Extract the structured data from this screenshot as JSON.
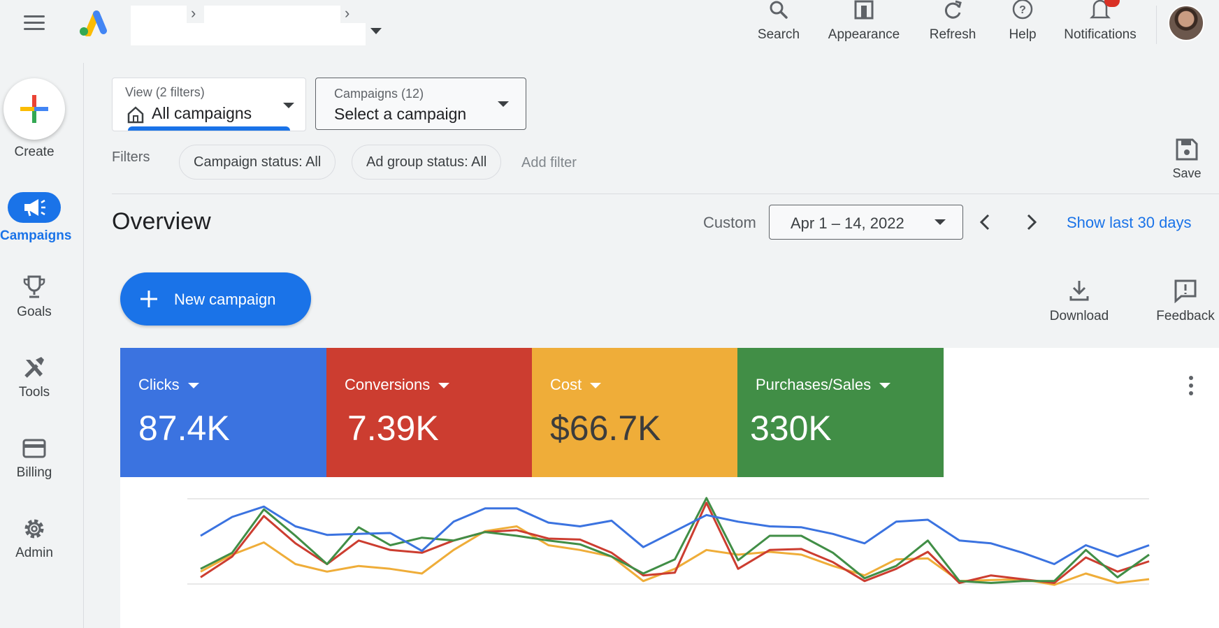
{
  "topbar": {
    "actions": [
      {
        "label": "Search",
        "icon": "search-icon"
      },
      {
        "label": "Appearance",
        "icon": "appearance-icon"
      },
      {
        "label": "Refresh",
        "icon": "refresh-icon"
      },
      {
        "label": "Help",
        "icon": "help-icon"
      },
      {
        "label": "Notifications",
        "icon": "bell-icon"
      }
    ]
  },
  "rail": {
    "create_label": "Create",
    "items": [
      {
        "label": "Campaigns",
        "icon": "megaphone-icon",
        "active": true
      },
      {
        "label": "Goals",
        "icon": "trophy-icon"
      },
      {
        "label": "Tools",
        "icon": "tools-icon"
      },
      {
        "label": "Billing",
        "icon": "credit-card-icon"
      },
      {
        "label": "Admin",
        "icon": "gear-icon"
      }
    ]
  },
  "view": {
    "small": "View (2 filters)",
    "main": "All campaigns"
  },
  "campaigns_select": {
    "small": "Campaigns (12)",
    "main": "Select a campaign"
  },
  "filters": {
    "label": "Filters",
    "chips": [
      "Campaign status: All",
      "Ad group status: All"
    ],
    "add": "Add filter",
    "save": "Save"
  },
  "overview": {
    "title": "Overview",
    "custom": "Custom",
    "date_range": "Apr 1 – 14, 2022",
    "show_last": "Show last 30 days"
  },
  "actions": {
    "new_campaign": "New campaign",
    "download": "Download",
    "feedback": "Feedback"
  },
  "metrics": [
    {
      "name": "Clicks",
      "value": "87.4K",
      "color": "#3b73e0"
    },
    {
      "name": "Conversions",
      "value": "7.39K",
      "color": "#cc3d30"
    },
    {
      "name": "Cost",
      "value": "$66.7K",
      "color": "#efad39"
    },
    {
      "name": "Purchases/Sales",
      "value": "330K",
      "color": "#418e46"
    }
  ],
  "chart_data": {
    "type": "line",
    "grid": true,
    "series": [
      {
        "color": "#3b73e0",
        "values": [
          60,
          80,
          91,
          70,
          61,
          62,
          63,
          44,
          75,
          89,
          89,
          74,
          70,
          76,
          48,
          65,
          82,
          75,
          70,
          69,
          62,
          52,
          75,
          77,
          55,
          52,
          42,
          30,
          50,
          38,
          50
        ]
      },
      {
        "color": "#cc3d30",
        "values": [
          16,
          38,
          81,
          52,
          30,
          55,
          45,
          42,
          55,
          64,
          66,
          57,
          56,
          42,
          18,
          21,
          95,
          25,
          45,
          46,
          32,
          12,
          25,
          43,
          10,
          18,
          14,
          10,
          37,
          22,
          33
        ]
      },
      {
        "color": "#efad39",
        "values": [
          22,
          40,
          53,
          30,
          22,
          28,
          25,
          20,
          45,
          65,
          70,
          50,
          45,
          38,
          12,
          25,
          45,
          40,
          43,
          40,
          28,
          18,
          35,
          36,
          12,
          13,
          14,
          8,
          20,
          10,
          14
        ]
      },
      {
        "color": "#418e46",
        "values": [
          25,
          42,
          88,
          60,
          30,
          69,
          50,
          58,
          55,
          64,
          60,
          55,
          51,
          38,
          20,
          35,
          100,
          34,
          60,
          60,
          42,
          15,
          28,
          55,
          12,
          10,
          12,
          12,
          45,
          16,
          40
        ]
      }
    ]
  }
}
